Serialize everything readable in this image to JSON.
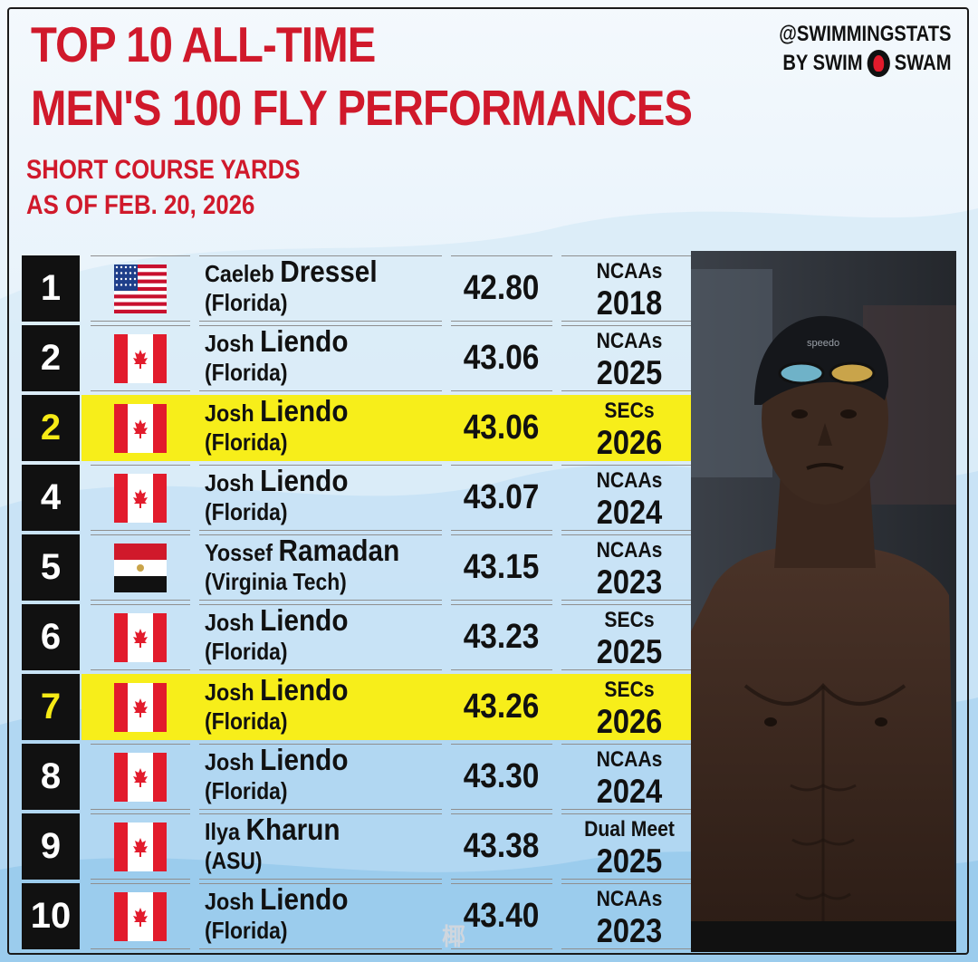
{
  "header": {
    "title_line1": "TOP 10 ALL-TIME",
    "title_line2": "MEN'S 100 FLY PERFORMANCES",
    "subtitle_line1": "SHORT COURSE YARDS",
    "subtitle_line2": "AS OF FEB. 20, 2026"
  },
  "brand": {
    "handle": "@SWIMMINGSTATS",
    "by": "BY SWIM",
    "swam": "SWAM"
  },
  "colors": {
    "accent_red": "#d0192b",
    "highlight_yellow": "#f7ee1a",
    "rank_bg": "#111111"
  },
  "rows": [
    {
      "rank": "1",
      "flag": "usa-flag",
      "first": "Caeleb",
      "last": "Dressel",
      "school": "(Florida)",
      "time": "42.80",
      "meet": "NCAAs",
      "year": "2018",
      "highlight": false
    },
    {
      "rank": "2",
      "flag": "canada-flag",
      "first": "Josh",
      "last": "Liendo",
      "school": "(Florida)",
      "time": "43.06",
      "meet": "NCAAs",
      "year": "2025",
      "highlight": false
    },
    {
      "rank": "2",
      "flag": "canada-flag",
      "first": "Josh",
      "last": "Liendo",
      "school": "(Florida)",
      "time": "43.06",
      "meet": "SECs",
      "year": "2026",
      "highlight": true
    },
    {
      "rank": "4",
      "flag": "canada-flag",
      "first": "Josh",
      "last": "Liendo",
      "school": "(Florida)",
      "time": "43.07",
      "meet": "NCAAs",
      "year": "2024",
      "highlight": false
    },
    {
      "rank": "5",
      "flag": "egypt-flag",
      "first": "Yossef",
      "last": "Ramadan",
      "school": "(Virginia Tech)",
      "time": "43.15",
      "meet": "NCAAs",
      "year": "2023",
      "highlight": false
    },
    {
      "rank": "6",
      "flag": "canada-flag",
      "first": "Josh",
      "last": "Liendo",
      "school": "(Florida)",
      "time": "43.23",
      "meet": "SECs",
      "year": "2025",
      "highlight": false
    },
    {
      "rank": "7",
      "flag": "canada-flag",
      "first": "Josh",
      "last": "Liendo",
      "school": "(Florida)",
      "time": "43.26",
      "meet": "SECs",
      "year": "2026",
      "highlight": true
    },
    {
      "rank": "8",
      "flag": "canada-flag",
      "first": "Josh",
      "last": "Liendo",
      "school": "(Florida)",
      "time": "43.30",
      "meet": "NCAAs",
      "year": "2024",
      "highlight": false
    },
    {
      "rank": "9",
      "flag": "canada-flag",
      "first": "Ilya",
      "last": "Kharun",
      "school": "(ASU)",
      "time": "43.38",
      "meet": "Dual Meet",
      "year": "2025",
      "highlight": false
    },
    {
      "rank": "10",
      "flag": "canada-flag",
      "first": "Josh",
      "last": "Liendo",
      "school": "(Florida)",
      "time": "43.40",
      "meet": "NCAAs",
      "year": "2023",
      "highlight": false
    }
  ],
  "photo": {
    "cap_text": "speedo"
  },
  "watermark": "椰"
}
